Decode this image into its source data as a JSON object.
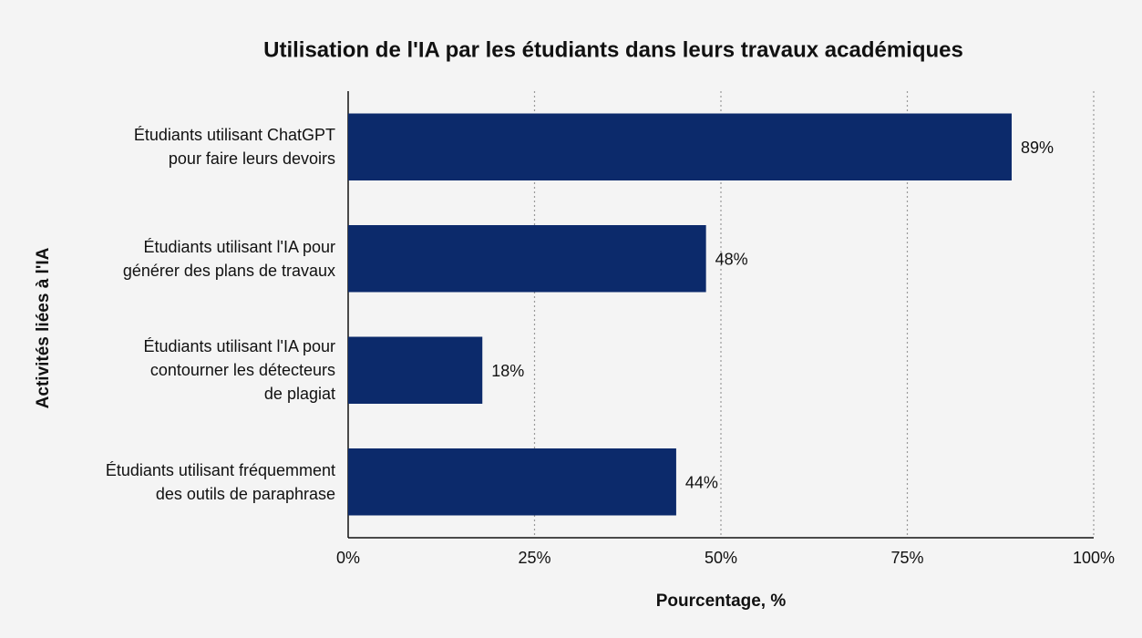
{
  "chart_data": {
    "type": "barh",
    "title": "Utilisation de l'IA par les étudiants dans leurs travaux académiques",
    "x_label": "Pourcentage, %",
    "y_label": "Activités liées à l'IA",
    "categories": [
      "Étudiants utilisant ChatGPT\npour faire leurs devoirs",
      "Étudiants utilisant l'IA pour\ngénérer des plans de travaux",
      "Étudiants utilisant l'IA pour\ncontourner les détecteurs\nde plagiat",
      "Étudiants utilisant fréquemment\ndes outils de paraphrase"
    ],
    "values": [
      89,
      48,
      18,
      44
    ],
    "value_labels": [
      "89%",
      "48%",
      "18%",
      "44%"
    ],
    "color": "#0c2a6b",
    "xlim": [
      0,
      100
    ],
    "xticks": [
      {
        "value": 0,
        "label": "0%"
      },
      {
        "value": 25,
        "label": "25%"
      },
      {
        "value": 50,
        "label": "50%"
      },
      {
        "value": 75,
        "label": "75%"
      },
      {
        "value": 100,
        "label": "100%"
      }
    ],
    "grid": true
  }
}
